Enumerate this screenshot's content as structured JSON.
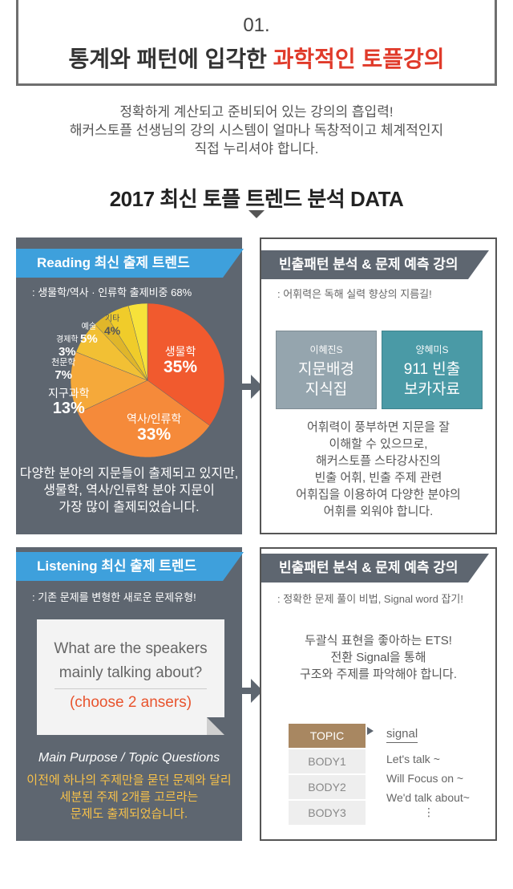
{
  "header": {
    "number": "01.",
    "title_plain": "통계와 패턴에 입각한 ",
    "title_highlight": "과학적인 토플강의"
  },
  "intro": {
    "line1": "정확하게 계산되고 준비되어 있는 강의의 흡입력!",
    "line2": "해커스토플 선생님의 강의 시스템이 얼마나 독창적이고 체계적인지",
    "line3": "직접 누리셔야 합니다."
  },
  "data_title": "2017 최신 토플 트렌드 분석 DATA",
  "reading": {
    "tag": "Reading 최신 출제 트렌드",
    "subtitle": ": 생물학/역사 · 인류학 출제비중 68%",
    "chart": {
      "slices": [
        {
          "name": "생물학",
          "value": "35%",
          "pct": 35,
          "color": "#f15a2e"
        },
        {
          "name": "역사/인류학",
          "value": "33%",
          "pct": 33,
          "color": "#f58a3a"
        },
        {
          "name": "지구과학",
          "value": "13%",
          "pct": 13,
          "color": "#f5a93a"
        },
        {
          "name": "천문학",
          "value": "7%",
          "pct": 7,
          "color": "#f2c034"
        },
        {
          "name": "경제학",
          "value": "3%",
          "pct": 3,
          "color": "#e0b62a"
        },
        {
          "name": "예술",
          "value": "5%",
          "pct": 5,
          "color": "#f0cc2a"
        },
        {
          "name": "기타",
          "value": "4%",
          "pct": 4,
          "color": "#f7e23a"
        }
      ]
    },
    "desc1": "다양한 분야의 지문들이 출제되고 있지만,",
    "desc2": "생물학, 역사/인류학 분야 지문이",
    "desc3": "가장 많이 출제되었습니다."
  },
  "reading_lecture": {
    "tag": "빈출패턴 분석 & 문제 예측 강의",
    "subtitle": ": 어휘력은 독해 실력 향상의 지름길!",
    "book1": {
      "teacher": "이혜진S",
      "line1": "지문배경",
      "line2": "지식집",
      "color": "#95a5ae"
    },
    "book2": {
      "teacher": "양혜미S",
      "line1": "911 빈출",
      "line2": "보카자료",
      "color": "#4a9aa6"
    },
    "desc": [
      "어휘력이 풍부하면 지문을 잘",
      "이해할 수 있으므로,",
      "해커스토플 스타강사진의",
      "빈출 어휘, 빈출 주제 관련",
      "어휘집을 이용하여 다양한 분야의",
      "어휘를 외워야 합니다."
    ]
  },
  "listening": {
    "tag": "Listening 최신 출제 트렌드",
    "subtitle": ": 기존 문제를 변형한 새로운 문제유형!",
    "question1": "What are the speakers",
    "question2": "mainly talking about?",
    "choice": "(choose 2 ansers)",
    "italic": "Main Purpose / Topic Questions",
    "desc1": "이전에 하나의 주제만을 묻던 문제와 달리",
    "desc2": "세분된 주제 2개를 고르라는",
    "desc3": "문제도 출제되었습니다."
  },
  "listening_lecture": {
    "tag": "빈출패턴 분석 & 문제 예측 강의",
    "subtitle": ": 정확한 문제 풀이 비법, Signal word 잡기!",
    "desc": [
      "두괄식 표현을 좋아하는 ETS!",
      "전환 Signal을 통해",
      "구조와 주제를 파악해야 합니다."
    ],
    "rows": [
      "TOPIC",
      "BODY1",
      "BODY2",
      "BODY3"
    ],
    "signal": "signal",
    "signals": [
      "Let's talk ~",
      "Will Focus on ~",
      "We'd talk about~",
      "⋮"
    ]
  }
}
